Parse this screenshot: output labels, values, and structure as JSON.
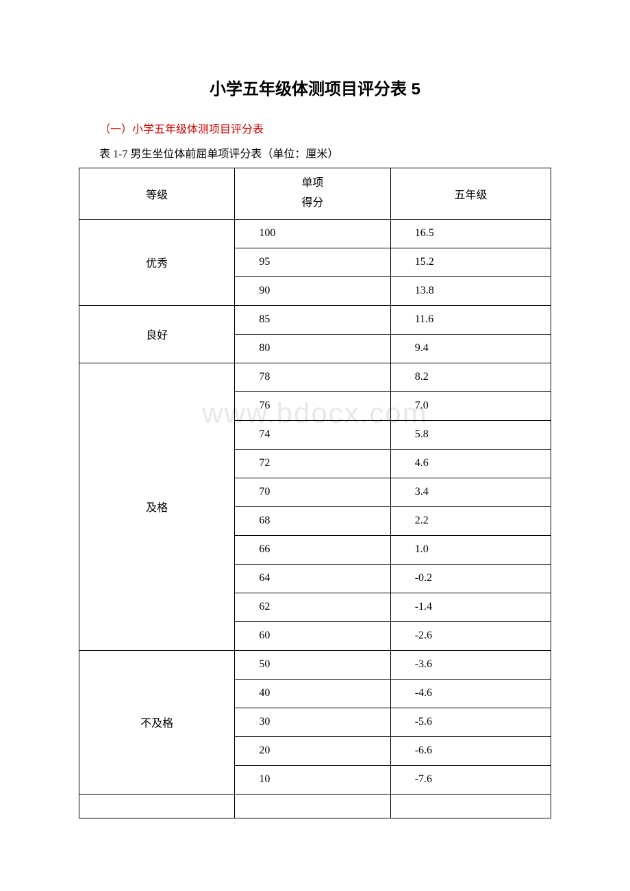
{
  "title": "小学五年级体测项目评分表 5",
  "subtitle": "（一）小学五年级体测项目评分表",
  "tableCaption": "表 1-7 男生坐位体前屈单项评分表（单位：厘米）",
  "watermark": "www.bdocx.com",
  "table": {
    "headers": {
      "level": "等级",
      "scoreLine1": "单项",
      "scoreLine2": "得分",
      "grade": "五年级"
    },
    "groups": [
      {
        "level": "优秀",
        "rows": [
          {
            "score": "100",
            "value": "16.5"
          },
          {
            "score": "95",
            "value": "15.2"
          },
          {
            "score": "90",
            "value": "13.8"
          }
        ]
      },
      {
        "level": "良好",
        "rows": [
          {
            "score": "85",
            "value": "11.6"
          },
          {
            "score": "80",
            "value": "9.4"
          }
        ]
      },
      {
        "level": "及格",
        "rows": [
          {
            "score": "78",
            "value": "8.2"
          },
          {
            "score": "76",
            "value": "7.0"
          },
          {
            "score": "74",
            "value": "5.8"
          },
          {
            "score": "72",
            "value": "4.6"
          },
          {
            "score": "70",
            "value": "3.4"
          },
          {
            "score": "68",
            "value": "2.2"
          },
          {
            "score": "66",
            "value": "1.0"
          },
          {
            "score": "64",
            "value": "-0.2"
          },
          {
            "score": "62",
            "value": "-1.4"
          },
          {
            "score": "60",
            "value": "-2.6"
          }
        ]
      },
      {
        "level": "不及格",
        "rows": [
          {
            "score": "50",
            "value": "-3.6"
          },
          {
            "score": "40",
            "value": "-4.6"
          },
          {
            "score": "30",
            "value": "-5.6"
          },
          {
            "score": "20",
            "value": "-6.6"
          },
          {
            "score": "10",
            "value": "-7.6"
          }
        ]
      }
    ]
  }
}
